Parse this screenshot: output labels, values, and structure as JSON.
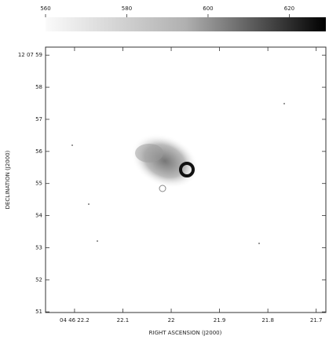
{
  "chart_data": {
    "type": "image",
    "xlabel": "RIGHT ASCENSION (J2000)",
    "ylabel": "DECLINATION (J2000)",
    "xlim": [
      22.26,
      21.68
    ],
    "xticks": [
      {
        "value": 22.2,
        "label": "04 46 22.2"
      },
      22.1,
      22.0,
      21.9,
      21.8,
      21.7
    ],
    "ylim": [
      50.98,
      59.25
    ],
    "yticks": [
      {
        "value": 59,
        "label": "12 07 59"
      },
      58,
      57,
      56,
      55,
      54,
      53,
      52,
      51
    ],
    "colorbar": {
      "lim": [
        560,
        629
      ],
      "ticks": [
        560,
        580,
        600,
        620
      ]
    }
  }
}
